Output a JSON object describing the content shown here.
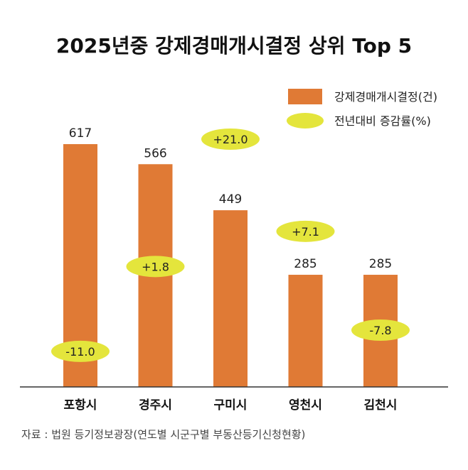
{
  "chart_data": {
    "type": "bar",
    "title": "2025년중 강제경매개시결정 상위 Top 5",
    "categories": [
      "포항시",
      "경주시",
      "구미시",
      "영천시",
      "김천시"
    ],
    "series": [
      {
        "name": "강제경매개시결정(건)",
        "type": "bar",
        "color": "#e07a35",
        "values": [
          617,
          566,
          449,
          285,
          285
        ],
        "labels": [
          "617",
          "566",
          "449",
          "285",
          "285"
        ]
      },
      {
        "name": "전년대비 증감률(%)",
        "type": "marker",
        "color": "#e4e53c",
        "values": [
          -11.0,
          1.8,
          21.0,
          7.1,
          -7.8
        ],
        "labels": [
          "-11.0",
          "+1.8",
          "+21.0",
          "+7.1",
          "-7.8"
        ]
      }
    ],
    "ylim": [
      0,
      617
    ],
    "legend": "top-right",
    "grid": false,
    "source": "자료 : 법원 등기정보광장(연도별 시군구별 부동산등기신청현황)"
  }
}
